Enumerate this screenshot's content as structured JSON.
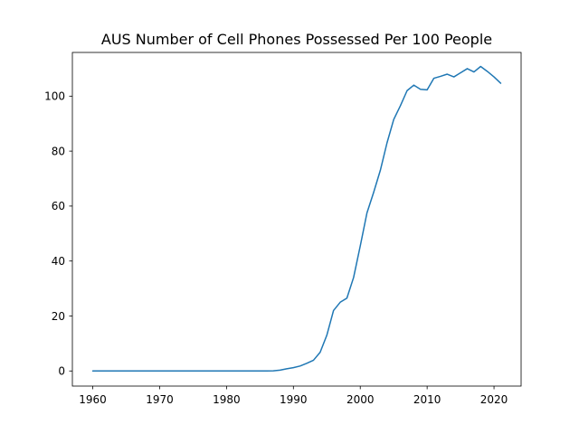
{
  "chart_data": {
    "type": "line",
    "title": "AUS Number of Cell Phones Possessed Per 100 People",
    "xlabel": "",
    "ylabel": "",
    "xlim": [
      1956.95,
      2024.05
    ],
    "ylim": [
      -5.5,
      115.9
    ],
    "xticks": [
      1960,
      1970,
      1980,
      1990,
      2000,
      2010,
      2020
    ],
    "yticks": [
      0,
      20,
      40,
      60,
      80,
      100
    ],
    "grid": false,
    "legend": "none",
    "line_color": "#1f77b4",
    "series": [
      {
        "x": [
          1960,
          1961,
          1962,
          1963,
          1964,
          1965,
          1966,
          1967,
          1968,
          1969,
          1970,
          1971,
          1972,
          1973,
          1974,
          1975,
          1976,
          1977,
          1978,
          1979,
          1980,
          1981,
          1982,
          1983,
          1984,
          1985,
          1986,
          1987,
          1988,
          1989,
          1990,
          1991,
          1992,
          1993,
          1994,
          1995,
          1996,
          1997,
          1998,
          1999,
          2000,
          2001,
          2002,
          2003,
          2004,
          2005,
          2006,
          2007,
          2008,
          2009,
          2010,
          2011,
          2012,
          2013,
          2014,
          2015,
          2016,
          2017,
          2018,
          2019,
          2020,
          2021
        ],
        "y": [
          0,
          0,
          0,
          0,
          0,
          0,
          0,
          0,
          0,
          0,
          0,
          0,
          0,
          0,
          0,
          0,
          0,
          0,
          0,
          0,
          0,
          0,
          0,
          0,
          0,
          0,
          0,
          0.05,
          0.3,
          0.8,
          1.2,
          1.8,
          2.8,
          3.9,
          6.8,
          13,
          22,
          25,
          26.5,
          34,
          45.5,
          57.5,
          65,
          73,
          83,
          91.5,
          96.5,
          102,
          104,
          102.5,
          102.3,
          106.5,
          107.2,
          108,
          107,
          108.5,
          110,
          108.8,
          110.8,
          109,
          107,
          104.7
        ]
      }
    ]
  }
}
